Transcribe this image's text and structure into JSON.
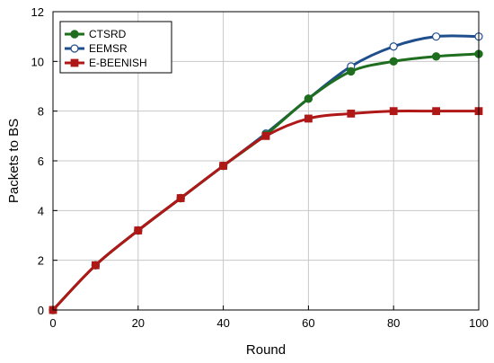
{
  "chart_data": {
    "type": "line",
    "title": "",
    "xlabel": "Round",
    "ylabel": "Packets to BS",
    "xlim": [
      0,
      100
    ],
    "ylim": [
      0,
      12
    ],
    "xticks": [
      0,
      20,
      40,
      60,
      80,
      100
    ],
    "yticks": [
      0,
      2,
      4,
      6,
      8,
      10,
      12
    ],
    "xtick_labels": [
      "0",
      "20",
      "40",
      "60",
      "80",
      "100"
    ],
    "ytick_labels": [
      "0",
      "2",
      "4",
      "6",
      "8",
      "10",
      "12"
    ],
    "grid": true,
    "legend_position": "top-left",
    "x": [
      0,
      10,
      20,
      30,
      40,
      50,
      60,
      70,
      80,
      90,
      100
    ],
    "series": [
      {
        "name": "CTSRD",
        "color": "#1f6e1f",
        "marker": "circle-filled",
        "values": [
          0,
          1.8,
          3.2,
          4.5,
          5.8,
          7.05,
          8.5,
          9.6,
          10.0,
          10.2,
          10.3
        ]
      },
      {
        "name": "EEMSR",
        "color": "#1f4e8c",
        "marker": "circle-open",
        "values": [
          0,
          1.8,
          3.2,
          4.5,
          5.8,
          7.1,
          8.5,
          9.8,
          10.6,
          11.0,
          11.0
        ]
      },
      {
        "name": "E-BEENISH",
        "color": "#b01818",
        "marker": "square",
        "values": [
          0,
          1.8,
          3.2,
          4.5,
          5.8,
          7.0,
          7.7,
          7.9,
          8.0,
          8.0,
          8.0
        ]
      }
    ]
  }
}
